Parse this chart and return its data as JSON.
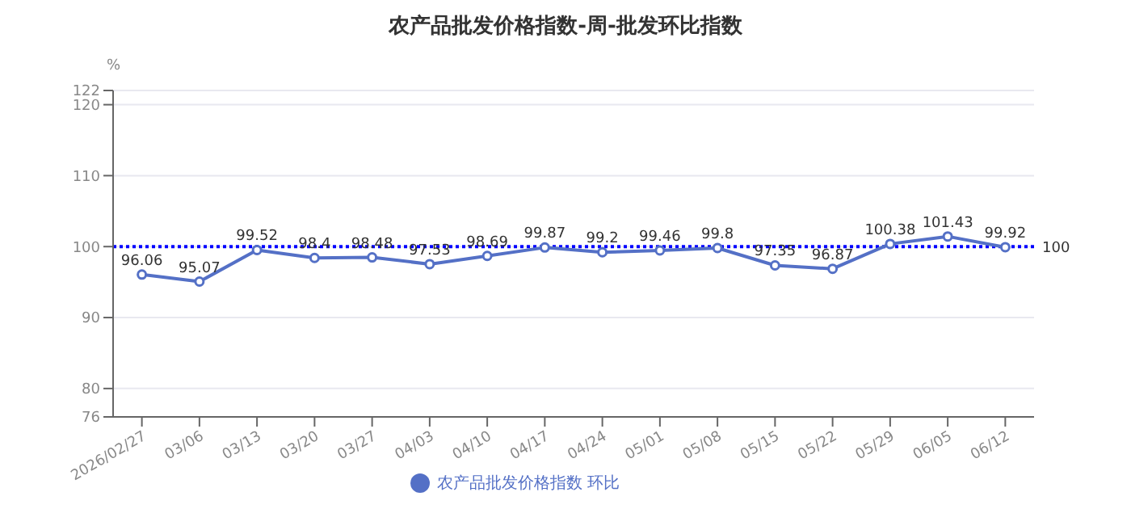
{
  "chart_data": {
    "type": "line",
    "title": "农产品批发价格指数-周-批发环比指数",
    "ylabel": "%",
    "categories": [
      "2026/02/27",
      "03/06",
      "03/13",
      "03/20",
      "03/27",
      "04/03",
      "04/10",
      "04/17",
      "04/24",
      "05/01",
      "05/08",
      "05/15",
      "05/22",
      "05/29",
      "06/05",
      "06/12"
    ],
    "series": [
      {
        "name": "农产品批发价格指数 环比",
        "color": "#5470c6",
        "values": [
          96.06,
          95.07,
          99.52,
          98.4,
          98.48,
          97.53,
          98.69,
          99.87,
          99.2,
          99.46,
          99.8,
          97.35,
          96.87,
          100.38,
          101.43,
          99.92
        ]
      }
    ],
    "ylim": [
      76,
      122
    ],
    "yticks": [
      76,
      80,
      90,
      100,
      110,
      120,
      122
    ],
    "ref_lines": [
      {
        "axis": "y",
        "value": 100,
        "label": "100",
        "color": "#0000ff",
        "line_style": "dotted"
      }
    ],
    "data_labels": true,
    "grid": "y",
    "legend": "bottom",
    "marker": "circle",
    "line_style": "solid"
  }
}
